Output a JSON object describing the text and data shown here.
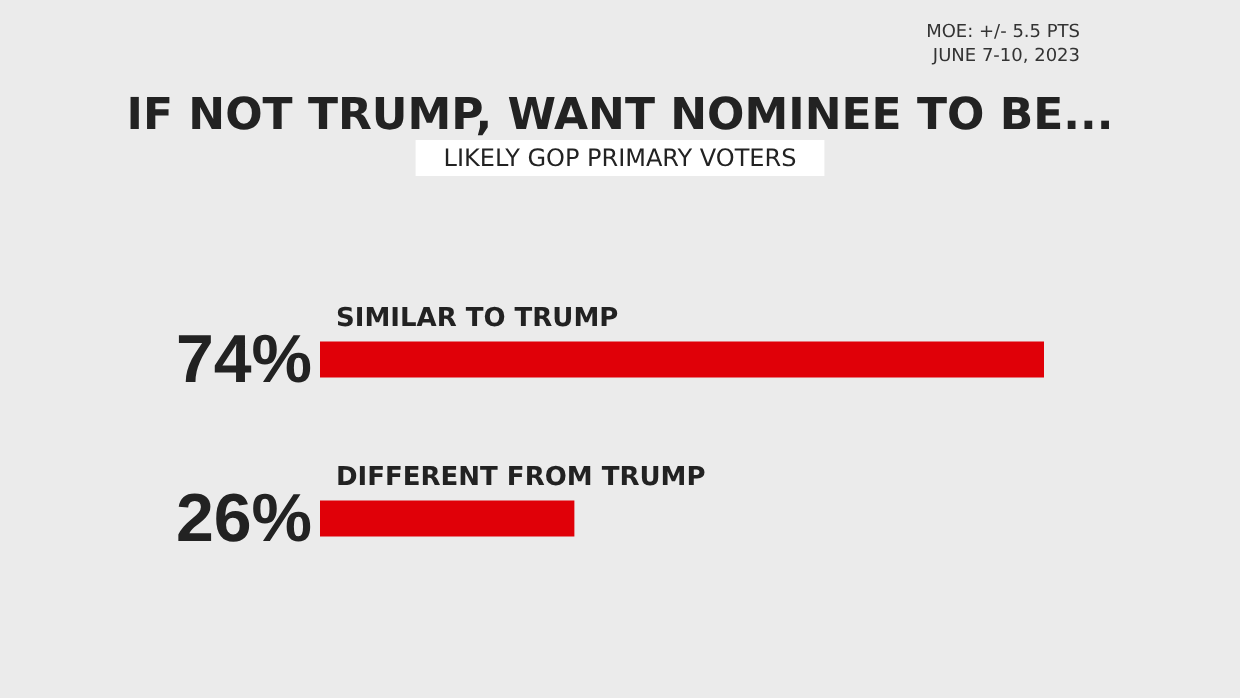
{
  "chart_data": {
    "type": "bar",
    "orientation": "horizontal",
    "tick_labels": false,
    "title": "IF NOT TRUMP, WANT NOMINEE TO BE...",
    "subtitle": "LIKELY GOP PRIMARY VOTERS",
    "annotations": [
      "MOE: +/- 5.5 PTS",
      "JUNE 7-10, 2023"
    ],
    "categories": [
      "SIMILAR TO TRUMP",
      "DIFFERENT FROM TRUMP"
    ],
    "values": [
      74,
      26
    ],
    "value_labels": [
      "74%",
      "26%"
    ],
    "color": "#e00008"
  }
}
